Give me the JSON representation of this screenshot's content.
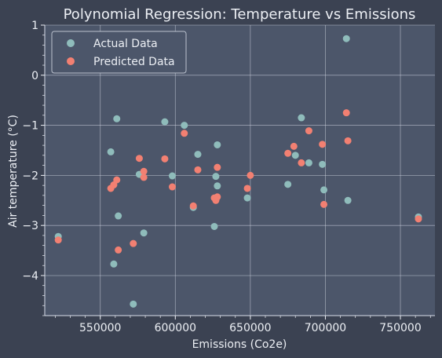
{
  "chart_data": {
    "type": "scatter",
    "title": "Polynomial Regression: Temperature vs Emissions",
    "xlabel": "Emissions (Co2e)",
    "ylabel": "Air temperature (°C)",
    "xlim": [
      513000,
      773000
    ],
    "ylim": [
      -4.8,
      1.0
    ],
    "x_ticks": [
      550000,
      600000,
      650000,
      700000,
      750000
    ],
    "x_tick_labels": [
      "550000",
      "600000",
      "650000",
      "700000",
      "750000"
    ],
    "y_ticks": [
      1,
      0,
      -1,
      -2,
      -3,
      -4
    ],
    "y_tick_labels": [
      "1",
      "0",
      "−1",
      "−2",
      "−3",
      "−4"
    ],
    "grid": true,
    "legend_position": "top-left",
    "colors": {
      "figure_bg": "#3b4252",
      "axes_bg": "#4c566a",
      "grid": "#d8dee9",
      "text": "#eceff4",
      "actual": "#8fbcbb",
      "predicted": "#f28072"
    },
    "series": [
      {
        "name": "Actual Data",
        "color": "#8fbcbb",
        "points": [
          [
            522000,
            -3.22
          ],
          [
            557000,
            -1.53
          ],
          [
            559000,
            -3.77
          ],
          [
            561000,
            -0.87
          ],
          [
            562000,
            -2.81
          ],
          [
            572000,
            -4.57
          ],
          [
            576000,
            -1.98
          ],
          [
            579000,
            -3.15
          ],
          [
            593000,
            -0.93
          ],
          [
            598000,
            -2.01
          ],
          [
            606000,
            -1.0
          ],
          [
            612000,
            -2.64
          ],
          [
            615000,
            -1.58
          ],
          [
            626000,
            -3.02
          ],
          [
            627000,
            -2.02
          ],
          [
            628000,
            -1.39
          ],
          [
            628000,
            -2.21
          ],
          [
            648000,
            -2.45
          ],
          [
            675000,
            -2.18
          ],
          [
            680000,
            -1.6
          ],
          [
            684000,
            -0.85
          ],
          [
            689000,
            -1.75
          ],
          [
            698000,
            -1.78
          ],
          [
            699000,
            -2.29
          ],
          [
            714000,
            0.73
          ],
          [
            715000,
            -2.5
          ],
          [
            762000,
            -2.83
          ]
        ]
      },
      {
        "name": "Predicted Data",
        "color": "#f28072",
        "points": [
          [
            522000,
            -3.29
          ],
          [
            557000,
            -2.26
          ],
          [
            559000,
            -2.19
          ],
          [
            561000,
            -2.09
          ],
          [
            562000,
            -3.49
          ],
          [
            572000,
            -3.36
          ],
          [
            576000,
            -1.66
          ],
          [
            579000,
            -1.92
          ],
          [
            579000,
            -2.04
          ],
          [
            593000,
            -1.67
          ],
          [
            598000,
            -2.23
          ],
          [
            606000,
            -1.16
          ],
          [
            612000,
            -2.61
          ],
          [
            615000,
            -1.89
          ],
          [
            626000,
            -2.45
          ],
          [
            627000,
            -2.5
          ],
          [
            628000,
            -2.43
          ],
          [
            628000,
            -1.84
          ],
          [
            648000,
            -2.26
          ],
          [
            650000,
            -2.0
          ],
          [
            675000,
            -1.56
          ],
          [
            679000,
            -1.42
          ],
          [
            684000,
            -1.75
          ],
          [
            689000,
            -1.11
          ],
          [
            698000,
            -1.38
          ],
          [
            699000,
            -2.58
          ],
          [
            714000,
            -0.75
          ],
          [
            715000,
            -1.31
          ],
          [
            762000,
            -2.87
          ]
        ]
      }
    ]
  }
}
